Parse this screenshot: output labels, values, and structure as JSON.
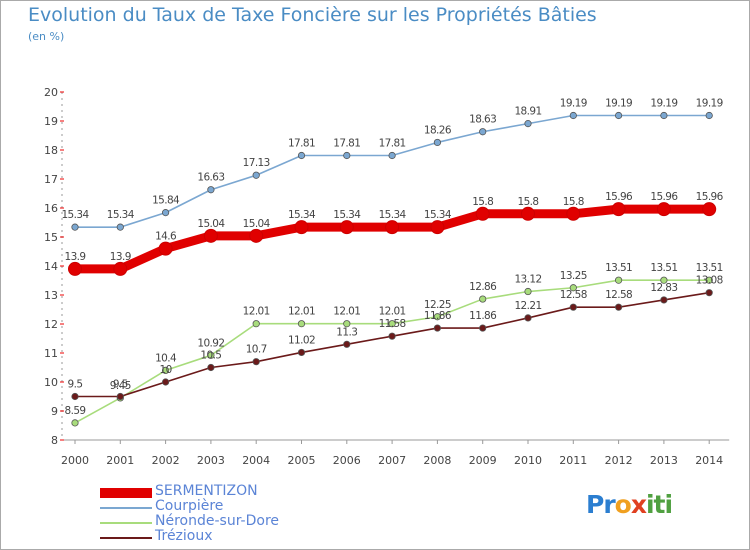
{
  "title": "Evolution du Taux de Taxe Foncière sur les Propriétés Bâties",
  "subtitle": "(en %)",
  "logo": {
    "text": "Proxiti",
    "letters": [
      "Pr",
      "o",
      "x",
      "iti"
    ]
  },
  "chart_data": {
    "type": "line",
    "x": [
      "2000",
      "2001",
      "2002",
      "2003",
      "2004",
      "2005",
      "2006",
      "2007",
      "2008",
      "2009",
      "2010",
      "2011",
      "2012",
      "2013",
      "2014"
    ],
    "yticks": [
      "8",
      "9",
      "10",
      "11",
      "12",
      "13",
      "14",
      "15",
      "16",
      "17",
      "18",
      "19",
      "20"
    ],
    "ylim": [
      8,
      20
    ],
    "grid": false,
    "legend": "bottom-left",
    "series": [
      {
        "name": "SERMENTIZON",
        "color": "#e00000",
        "values": [
          13.9,
          13.9,
          14.6,
          15.04,
          15.04,
          15.34,
          15.34,
          15.34,
          15.34,
          15.8,
          15.8,
          15.8,
          15.96,
          15.96,
          15.96
        ],
        "labels": [
          "13.9",
          "13.9",
          "14.6",
          "15.04",
          "15.04",
          "15.34",
          "15.34",
          "15.34",
          "15.34",
          "15.8",
          "15.8",
          "15.8",
          "15.96",
          "15.96",
          "15.96"
        ]
      },
      {
        "name": "Courpière",
        "color": "#7ba7d1",
        "values": [
          15.34,
          15.34,
          15.84,
          16.63,
          17.13,
          17.81,
          17.81,
          17.81,
          18.26,
          18.63,
          18.91,
          19.19,
          19.19,
          19.19,
          19.19
        ],
        "labels": [
          "15.34",
          "15.34",
          "15.84",
          "16.63",
          "17.13",
          "17.81",
          "17.81",
          "17.81",
          "18.26",
          "18.63",
          "18.91",
          "19.19",
          "19.19",
          "19.19",
          "19.19"
        ]
      },
      {
        "name": "Néronde-sur-Dore",
        "color": "#a8dc7c",
        "values": [
          8.59,
          9.45,
          10.4,
          10.92,
          12.01,
          12.01,
          12.01,
          12.01,
          12.25,
          12.86,
          13.12,
          13.25,
          13.51,
          13.51,
          13.51
        ],
        "labels": [
          "8.59",
          "9.45",
          "10.4",
          "10.92",
          "12.01",
          "12.01",
          "12.01",
          "12.01",
          "12.25",
          "12.86",
          "13.12",
          "13.25",
          "13.51",
          "13.51",
          "13.51"
        ]
      },
      {
        "name": "Trézioux",
        "color": "#6b1a1a",
        "values": [
          9.5,
          9.5,
          10,
          10.5,
          10.7,
          11.02,
          11.3,
          11.58,
          11.86,
          11.86,
          12.21,
          12.58,
          12.58,
          12.83,
          13.08
        ],
        "labels": [
          "9.5",
          "9.5",
          "10",
          "10.5",
          "10.7",
          "11.02",
          "11.3",
          "11.58",
          "11.86",
          "11.86",
          "12.21",
          "12.58",
          "12.58",
          "12.83",
          "13.08"
        ]
      }
    ]
  }
}
